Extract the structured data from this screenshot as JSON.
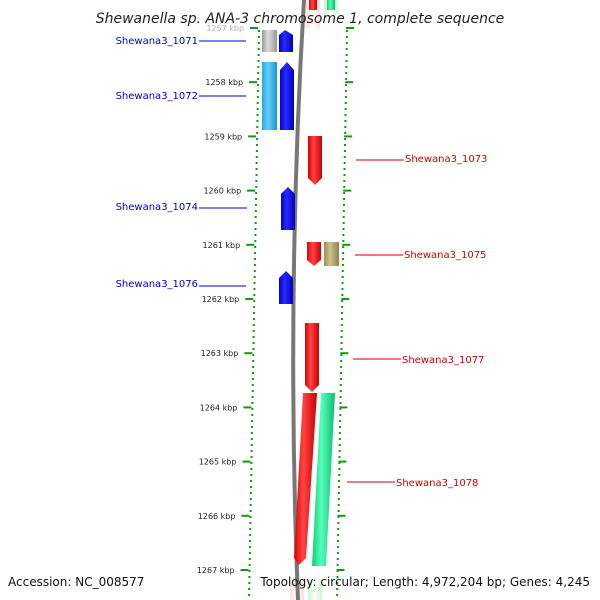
{
  "title": "Shewanella sp. ANA-3 chromosome 1, complete sequence",
  "accession": "Accession: NC_008577",
  "topology": "Topology: circular; Length: 4,972,204 bp; Genes: 4,245",
  "colors": {
    "minus_strand_label": "#0000cc",
    "plus_strand_label": "#cc0000",
    "blue_gene": "#0000ff",
    "cyan_gene": "#33bbee",
    "gray_gene": "#aaaaaa",
    "red_gene": "#ff0000",
    "khaki_gene": "#b3a66b",
    "teal_gene": "#22ee99",
    "backbone": "#777777",
    "ticks": "#119911"
  },
  "ticks": [
    {
      "kbp": 1257,
      "label": "1257 kbp"
    },
    {
      "kbp": 1258,
      "label": "1258 kbp"
    },
    {
      "kbp": 1259,
      "label": "1259 kbp"
    },
    {
      "kbp": 1260,
      "label": "1260 kbp"
    },
    {
      "kbp": 1261,
      "label": "1261 kbp"
    },
    {
      "kbp": 1262,
      "label": "1262 kbp"
    },
    {
      "kbp": 1263,
      "label": "1263 kbp"
    },
    {
      "kbp": 1264,
      "label": "1264 kbp"
    },
    {
      "kbp": 1265,
      "label": "1265 kbp"
    },
    {
      "kbp": 1266,
      "label": "1266 kbp"
    },
    {
      "kbp": 1267,
      "label": "1267 kbp"
    }
  ],
  "genes": [
    {
      "name": "Shewana3_1071",
      "strand": "-"
    },
    {
      "name": "Shewana3_1072",
      "strand": "-"
    },
    {
      "name": "Shewana3_1073",
      "strand": "+"
    },
    {
      "name": "Shewana3_1074",
      "strand": "-"
    },
    {
      "name": "Shewana3_1075",
      "strand": "+"
    },
    {
      "name": "Shewana3_1076",
      "strand": "-"
    },
    {
      "name": "Shewana3_1077",
      "strand": "+"
    },
    {
      "name": "Shewana3_1078",
      "strand": "+"
    }
  ]
}
